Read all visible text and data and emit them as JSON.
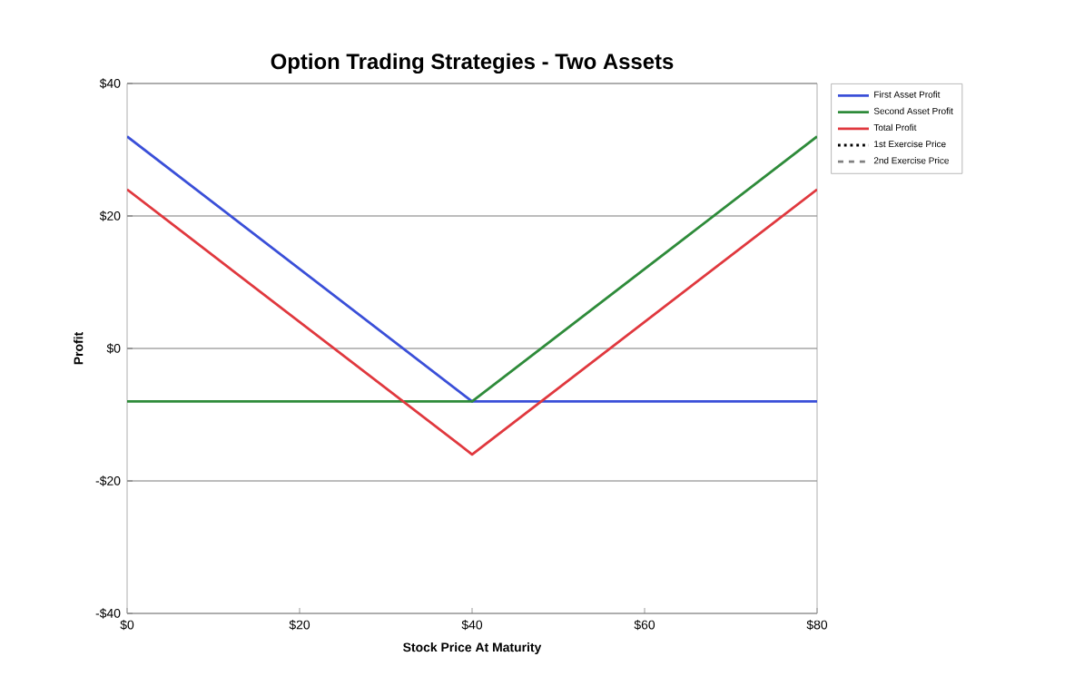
{
  "chart_data": {
    "type": "line",
    "title": "Option Trading Strategies - Two Assets",
    "xlabel": "Stock Price At Maturity",
    "ylabel": "Profit",
    "x": [
      0,
      40,
      80
    ],
    "series": [
      {
        "name": "First Asset Profit",
        "color": "#3a4fd8",
        "values": [
          32,
          -8,
          -8
        ]
      },
      {
        "name": "Second Asset Profit",
        "color": "#2e8b3a",
        "values": [
          -8,
          -8,
          32
        ]
      },
      {
        "name": "Total Profit",
        "color": "#e0383e",
        "values": [
          24,
          -16,
          24
        ]
      },
      {
        "name": "1st Exercise Price",
        "color": "#000000",
        "line_style": "dotted",
        "values": [
          null,
          null,
          null
        ]
      },
      {
        "name": "2nd Exercise Price",
        "color": "#808080",
        "line_style": "dashed",
        "values": [
          null,
          null,
          null
        ]
      }
    ],
    "xlim": [
      0,
      80
    ],
    "ylim": [
      -40,
      40
    ],
    "xticks": [
      {
        "value": 0,
        "label": "$0"
      },
      {
        "value": 20,
        "label": "$20"
      },
      {
        "value": 40,
        "label": "$40"
      },
      {
        "value": 60,
        "label": "$60"
      },
      {
        "value": 80,
        "label": "$80"
      }
    ],
    "yticks": [
      {
        "value": -40,
        "label": "-$40"
      },
      {
        "value": -20,
        "label": "-$20"
      },
      {
        "value": 0,
        "label": "$0"
      },
      {
        "value": 20,
        "label": "$20"
      },
      {
        "value": 40,
        "label": "$40"
      }
    ],
    "grid": "y",
    "legend": "right",
    "marker": "none",
    "line_style": "solid"
  }
}
